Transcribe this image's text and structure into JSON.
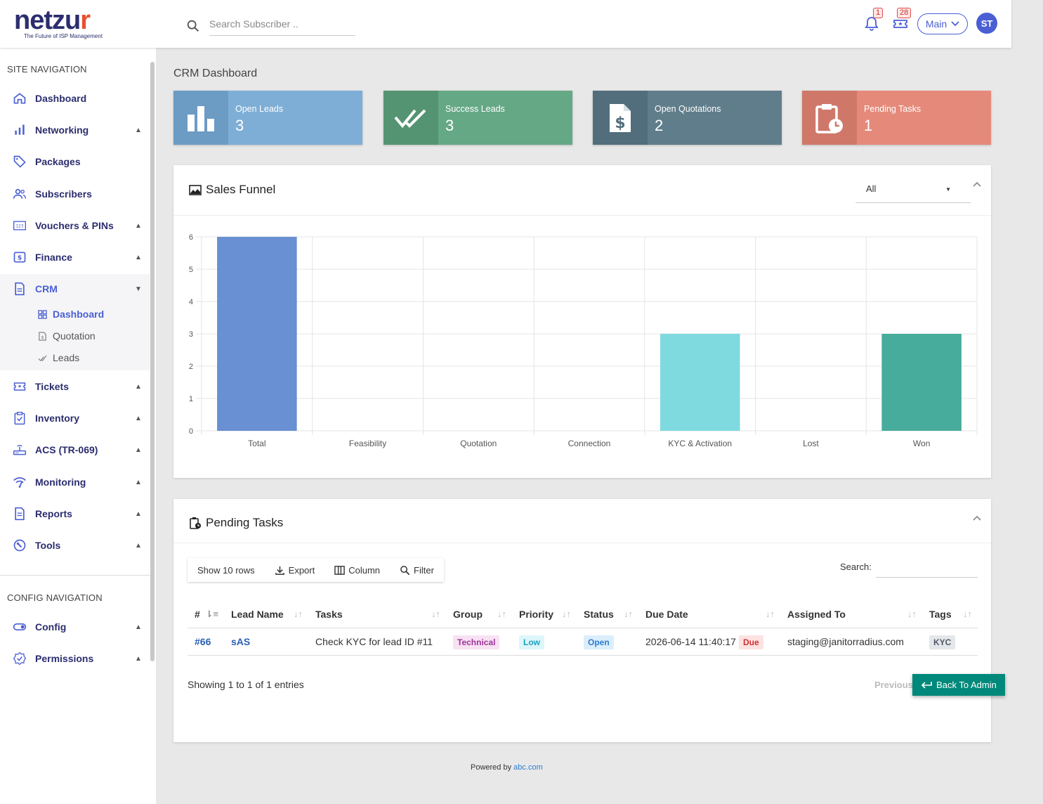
{
  "header": {
    "logo_text": "netzur",
    "logo_tagline": "The Future of ISP Management",
    "search_placeholder": "Search Subscriber ..",
    "notifications_count": "1",
    "tickets_count": "28",
    "branch_select": "Main",
    "avatar_initials": "ST"
  },
  "sidebar": {
    "site_section": "SITE NAVIGATION",
    "config_section": "CONFIG NAVIGATION",
    "items": [
      {
        "label": "Dashboard",
        "icon": "home-icon"
      },
      {
        "label": "Networking",
        "icon": "bar-chart-icon"
      },
      {
        "label": "Packages",
        "icon": "tag-icon"
      },
      {
        "label": "Subscribers",
        "icon": "users-icon"
      },
      {
        "label": "Vouchers & PINs",
        "icon": "voucher-icon"
      },
      {
        "label": "Finance",
        "icon": "dollar-icon"
      },
      {
        "label": "CRM",
        "icon": "document-icon"
      },
      {
        "label": "Tickets",
        "icon": "ticket-icon"
      },
      {
        "label": "Inventory",
        "icon": "clipboard-check-icon"
      },
      {
        "label": "ACS (TR-069)",
        "icon": "router-icon"
      },
      {
        "label": "Monitoring",
        "icon": "signal-icon"
      },
      {
        "label": "Reports",
        "icon": "report-icon"
      },
      {
        "label": "Tools",
        "icon": "wrench-icon"
      }
    ],
    "crm_sub": [
      {
        "label": "Dashboard",
        "icon": "grid-icon"
      },
      {
        "label": "Quotation",
        "icon": "file-dollar-icon"
      },
      {
        "label": "Leads",
        "icon": "double-check-icon"
      }
    ],
    "config_items": [
      {
        "label": "Config",
        "icon": "toggle-icon"
      },
      {
        "label": "Permissions",
        "icon": "shield-check-icon"
      }
    ]
  },
  "page": {
    "title": "CRM Dashboard"
  },
  "stats": [
    {
      "label": "Open Leads",
      "value": "3",
      "color": "#7eaed6",
      "icon_bg": "#6c9bc4"
    },
    {
      "label": "Success Leads",
      "value": "3",
      "color": "#65a886",
      "icon_bg": "#559472"
    },
    {
      "label": "Open Quotations",
      "value": "2",
      "color": "#607d8b",
      "icon_bg": "#526e7c"
    },
    {
      "label": "Pending Tasks",
      "value": "1",
      "color": "#e58a7b",
      "icon_bg": "#cf786a"
    }
  ],
  "sales_funnel": {
    "title": "Sales Funnel",
    "filter_value": "All"
  },
  "chart_data": {
    "type": "bar",
    "categories": [
      "Total",
      "Feasibility",
      "Quotation",
      "Connection",
      "KYC & Activation",
      "Lost",
      "Won"
    ],
    "values": [
      6,
      0,
      0,
      0,
      3,
      0,
      3
    ],
    "colors": [
      "#6890d2",
      "#6890d2",
      "#6890d2",
      "#6890d2",
      "#7fdae0",
      "#6890d2",
      "#47ac9c"
    ],
    "ylim": [
      0,
      6
    ],
    "yticks": [
      "0",
      "1",
      "2",
      "3",
      "4",
      "5",
      "6"
    ],
    "grid": true
  },
  "pending_tasks": {
    "title": "Pending Tasks",
    "toolbar": {
      "rows": "Show 10 rows",
      "export": "Export",
      "column": "Column",
      "filter": "Filter"
    },
    "search_label": "Search:",
    "columns": [
      "#",
      "Lead Name",
      "Tasks",
      "Group",
      "Priority",
      "Status",
      "Due Date",
      "Assigned To",
      "Tags"
    ],
    "rows": [
      {
        "id": "#66",
        "lead": "sAS",
        "task": "Check KYC for lead ID #11",
        "group": "Technical",
        "priority": "Low",
        "status": "Open",
        "due_date": "2026-06-14 11:40:17",
        "due_badge": "Due",
        "assigned": "staging@janitorradius.com",
        "tag": "KYC"
      }
    ],
    "entries_info": "Showing 1 to 1 of 1 entries",
    "previous": "Previous"
  },
  "back_button": "Back To Admin",
  "footer": {
    "powered_by": "Powered by",
    "link": "abc.com"
  }
}
